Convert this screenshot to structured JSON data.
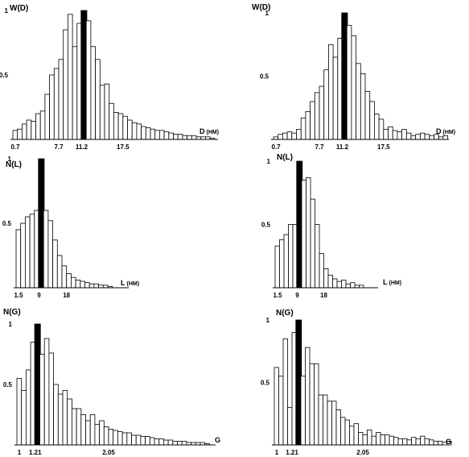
{
  "chart_data": [
    {
      "type": "bar",
      "ylabel": "W(D)",
      "xlabel": "D",
      "xunit": "(HM)",
      "ytick_labels": [
        "1",
        "0.5"
      ],
      "yticks": [
        1,
        0.5
      ],
      "xtick_labels": [
        "0.7",
        "7.7",
        "11.2",
        "17.5"
      ],
      "xticks": [
        0.7,
        7.7,
        11.2,
        17.5
      ],
      "bin_start": 0.7,
      "bin_width": 0.7,
      "ylim": [
        0,
        1
      ],
      "highlight_bin": 15,
      "values": [
        0.07,
        0.08,
        0.12,
        0.15,
        0.14,
        0.2,
        0.22,
        0.35,
        0.5,
        0.55,
        0.62,
        0.85,
        0.97,
        0.72,
        0.9,
        1.0,
        0.92,
        0.72,
        0.62,
        0.42,
        0.43,
        0.28,
        0.21,
        0.2,
        0.18,
        0.15,
        0.13,
        0.12,
        0.1,
        0.09,
        0.08,
        0.07,
        0.07,
        0.06,
        0.05,
        0.04,
        0.04,
        0.03,
        0.03,
        0.03,
        0.02,
        0.02,
        0.02,
        0.01
      ]
    },
    {
      "type": "bar",
      "ylabel": "W(D)",
      "xlabel": "D",
      "xunit": "(HM)",
      "ytick_labels": [
        "1",
        "0.5"
      ],
      "yticks": [
        1,
        0.5
      ],
      "xtick_labels": [
        "0.7",
        "7.7",
        "11.2",
        "17.5"
      ],
      "xticks": [
        0.7,
        7.7,
        11.2,
        17.5
      ],
      "bin_start": 0.7,
      "bin_width": 0.7,
      "ylim": [
        0,
        1
      ],
      "highlight_bin": 15,
      "values": [
        0.02,
        0.04,
        0.05,
        0.06,
        0.05,
        0.08,
        0.17,
        0.22,
        0.3,
        0.37,
        0.42,
        0.55,
        0.75,
        0.65,
        0.8,
        1.0,
        0.9,
        0.82,
        0.6,
        0.52,
        0.38,
        0.3,
        0.2,
        0.16,
        0.08,
        0.1,
        0.07,
        0.06,
        0.08,
        0.05,
        0.03,
        0.04,
        0.05,
        0.04,
        0.03,
        0.04,
        0.02,
        0.03
      ]
    },
    {
      "type": "bar",
      "ylabel": "N(L)",
      "xlabel": "L",
      "xunit": "(HM)",
      "ytick_labels": [
        "1",
        "0.5"
      ],
      "yticks": [
        1,
        0.5
      ],
      "xtick_labels": [
        "1.5",
        "9",
        "18"
      ],
      "xticks": [
        1.5,
        9,
        18
      ],
      "bin_start": 1.5,
      "bin_width": 1.5,
      "ylim": [
        0,
        1
      ],
      "highlight_bin": 5,
      "values": [
        0.45,
        0.5,
        0.55,
        0.57,
        0.6,
        1.0,
        0.6,
        0.52,
        0.37,
        0.25,
        0.17,
        0.11,
        0.08,
        0.06,
        0.05,
        0.04,
        0.03,
        0.03,
        0.02,
        0.02,
        0.01
      ]
    },
    {
      "type": "bar",
      "ylabel": "N(L)",
      "xlabel": "L",
      "xunit": "(HM)",
      "ytick_labels": [
        "1",
        "0.5"
      ],
      "yticks": [
        1,
        0.5
      ],
      "xtick_labels": [
        "1.5",
        "9",
        "18"
      ],
      "xticks": [
        1.5,
        9,
        18
      ],
      "bin_start": 1.5,
      "bin_width": 1.5,
      "ylim": [
        0,
        1
      ],
      "highlight_bin": 5,
      "values": [
        0.33,
        0.38,
        0.42,
        0.5,
        0.5,
        1.0,
        0.85,
        0.87,
        0.7,
        0.5,
        0.27,
        0.15,
        0.1,
        0.07,
        0.05,
        0.06,
        0.03,
        0.04,
        0.02,
        0.02
      ]
    },
    {
      "type": "bar",
      "ylabel": "N(G)",
      "xlabel": "G",
      "ytick_labels": [
        "1",
        "0.5"
      ],
      "yticks": [
        1,
        0.5
      ],
      "xtick_labels": [
        "1",
        "1.21",
        "2.05"
      ],
      "xticks": [
        1,
        1.21,
        2.05
      ],
      "bin_start": 1.0,
      "bin_width": 0.0525,
      "ylim": [
        0,
        1
      ],
      "highlight_bin": 4,
      "values": [
        0.55,
        0.45,
        0.62,
        0.85,
        1.0,
        0.75,
        0.88,
        0.76,
        0.5,
        0.42,
        0.45,
        0.38,
        0.3,
        0.3,
        0.25,
        0.2,
        0.25,
        0.17,
        0.2,
        0.15,
        0.13,
        0.12,
        0.11,
        0.1,
        0.1,
        0.08,
        0.08,
        0.07,
        0.07,
        0.06,
        0.05,
        0.05,
        0.04,
        0.04,
        0.03,
        0.03,
        0.03,
        0.02,
        0.02,
        0.02,
        0.02,
        0.01
      ]
    },
    {
      "type": "bar",
      "ylabel": "N(G)",
      "xlabel": "G",
      "ytick_labels": [
        "1",
        "0.5"
      ],
      "yticks": [
        1,
        0.5
      ],
      "xtick_labels": [
        "1",
        "1.21",
        "2.05"
      ],
      "xticks": [
        1,
        1.21,
        2.05
      ],
      "bin_start": 1.0,
      "bin_width": 0.0525,
      "ylim": [
        0,
        1
      ],
      "highlight_bin": 5,
      "values": [
        0.62,
        0.55,
        0.85,
        0.3,
        0.9,
        1.0,
        0.55,
        0.78,
        0.65,
        0.65,
        0.4,
        0.4,
        0.35,
        0.35,
        0.28,
        0.22,
        0.2,
        0.15,
        0.17,
        0.1,
        0.08,
        0.12,
        0.07,
        0.1,
        0.08,
        0.08,
        0.07,
        0.06,
        0.05,
        0.05,
        0.04,
        0.06,
        0.05,
        0.07,
        0.05,
        0.04,
        0.03,
        0.03,
        0.02,
        0.03
      ]
    }
  ]
}
